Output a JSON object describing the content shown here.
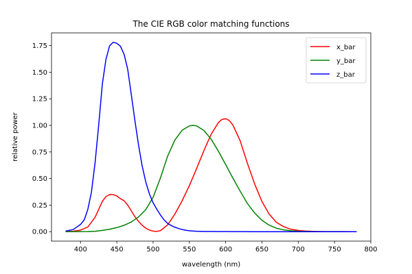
{
  "chart_data": {
    "type": "line",
    "title": "The CIE RGB color matching functions",
    "xlabel": "wavelength (nm)",
    "ylabel": "relative power",
    "xlim": [
      360,
      800
    ],
    "ylim": [
      -0.089,
      1.87
    ],
    "xticks": [
      400,
      450,
      500,
      550,
      600,
      650,
      700,
      750,
      800
    ],
    "xtick_labels": [
      "400",
      "450",
      "500",
      "550",
      "600",
      "650",
      "700",
      "750",
      "800"
    ],
    "yticks": [
      0,
      0.25,
      0.5,
      0.75,
      1.0,
      1.25,
      1.5,
      1.75
    ],
    "ytick_labels": [
      "0.00",
      "0.25",
      "0.50",
      "0.75",
      "1.00",
      "1.25",
      "1.50",
      "1.75"
    ],
    "grid": false,
    "legend_position": "top-right",
    "series": [
      {
        "name": "x_bar",
        "color": "#ff0000",
        "points": [
          [
            380,
            0.0014
          ],
          [
            390,
            0.0042
          ],
          [
            400,
            0.0143
          ],
          [
            410,
            0.0435
          ],
          [
            420,
            0.1344
          ],
          [
            430,
            0.2839
          ],
          [
            435,
            0.33
          ],
          [
            440,
            0.3483
          ],
          [
            445,
            0.348
          ],
          [
            450,
            0.3362
          ],
          [
            455,
            0.31
          ],
          [
            460,
            0.2908
          ],
          [
            465,
            0.25
          ],
          [
            470,
            0.1954
          ],
          [
            475,
            0.14
          ],
          [
            480,
            0.0956
          ],
          [
            485,
            0.06
          ],
          [
            490,
            0.032
          ],
          [
            495,
            0.015
          ],
          [
            500,
            0.0049
          ],
          [
            505,
            0.0024
          ],
          [
            510,
            0.0093
          ],
          [
            520,
            0.0633
          ],
          [
            530,
            0.1655
          ],
          [
            540,
            0.2904
          ],
          [
            550,
            0.4334
          ],
          [
            560,
            0.5945
          ],
          [
            570,
            0.7621
          ],
          [
            580,
            0.9163
          ],
          [
            590,
            1.0263
          ],
          [
            595,
            1.0567
          ],
          [
            600,
            1.0622
          ],
          [
            605,
            1.0456
          ],
          [
            610,
            1.0026
          ],
          [
            620,
            0.8544
          ],
          [
            630,
            0.6424
          ],
          [
            640,
            0.4479
          ],
          [
            650,
            0.2835
          ],
          [
            660,
            0.1649
          ],
          [
            670,
            0.0874
          ],
          [
            680,
            0.0468
          ],
          [
            690,
            0.0227
          ],
          [
            700,
            0.0114
          ],
          [
            710,
            0.0058
          ],
          [
            720,
            0.0029
          ],
          [
            730,
            0.0014
          ],
          [
            740,
            0.0007
          ],
          [
            750,
            0.0003
          ],
          [
            760,
            0.0002
          ],
          [
            770,
            0.0001
          ],
          [
            780,
            0.0
          ]
        ]
      },
      {
        "name": "y_bar",
        "color": "#008000",
        "points": [
          [
            380,
            0.0
          ],
          [
            390,
            0.0001
          ],
          [
            400,
            0.0004
          ],
          [
            410,
            0.0012
          ],
          [
            420,
            0.004
          ],
          [
            430,
            0.0116
          ],
          [
            440,
            0.023
          ],
          [
            450,
            0.038
          ],
          [
            460,
            0.06
          ],
          [
            470,
            0.091
          ],
          [
            480,
            0.139
          ],
          [
            490,
            0.208
          ],
          [
            500,
            0.323
          ],
          [
            510,
            0.503
          ],
          [
            520,
            0.71
          ],
          [
            530,
            0.862
          ],
          [
            540,
            0.954
          ],
          [
            550,
            0.995
          ],
          [
            555,
            1.0
          ],
          [
            560,
            0.995
          ],
          [
            570,
            0.952
          ],
          [
            580,
            0.87
          ],
          [
            590,
            0.757
          ],
          [
            600,
            0.631
          ],
          [
            610,
            0.503
          ],
          [
            620,
            0.381
          ],
          [
            630,
            0.265
          ],
          [
            640,
            0.175
          ],
          [
            650,
            0.107
          ],
          [
            660,
            0.061
          ],
          [
            670,
            0.032
          ],
          [
            680,
            0.017
          ],
          [
            690,
            0.0082
          ],
          [
            700,
            0.0041
          ],
          [
            710,
            0.0021
          ],
          [
            720,
            0.001
          ],
          [
            730,
            0.0005
          ],
          [
            740,
            0.0003
          ],
          [
            750,
            0.0001
          ],
          [
            760,
            0.0001
          ],
          [
            770,
            0.0
          ],
          [
            780,
            0.0
          ]
        ]
      },
      {
        "name": "z_bar",
        "color": "#0000ff",
        "points": [
          [
            380,
            0.0065
          ],
          [
            390,
            0.0201
          ],
          [
            400,
            0.0679
          ],
          [
            405,
            0.11
          ],
          [
            410,
            0.2074
          ],
          [
            415,
            0.37
          ],
          [
            420,
            0.6456
          ],
          [
            425,
            1.0
          ],
          [
            430,
            1.3856
          ],
          [
            435,
            1.62
          ],
          [
            440,
            1.7471
          ],
          [
            445,
            1.782
          ],
          [
            450,
            1.772
          ],
          [
            455,
            1.744
          ],
          [
            460,
            1.6692
          ],
          [
            465,
            1.528
          ],
          [
            470,
            1.2876
          ],
          [
            475,
            1.0419
          ],
          [
            480,
            0.813
          ],
          [
            485,
            0.6162
          ],
          [
            490,
            0.4652
          ],
          [
            495,
            0.3533
          ],
          [
            500,
            0.272
          ],
          [
            505,
            0.2123
          ],
          [
            510,
            0.1582
          ],
          [
            515,
            0.1117
          ],
          [
            520,
            0.0782
          ],
          [
            525,
            0.0573
          ],
          [
            530,
            0.0422
          ],
          [
            535,
            0.0298
          ],
          [
            540,
            0.0203
          ],
          [
            545,
            0.0134
          ],
          [
            550,
            0.0087
          ],
          [
            555,
            0.0058
          ],
          [
            560,
            0.0039
          ],
          [
            570,
            0.0021
          ],
          [
            580,
            0.0017
          ],
          [
            590,
            0.0011
          ],
          [
            600,
            0.0008
          ],
          [
            610,
            0.0003
          ],
          [
            620,
            0.0002
          ],
          [
            640,
            0.0
          ],
          [
            700,
            0.0
          ],
          [
            780,
            0.0
          ]
        ]
      }
    ]
  }
}
